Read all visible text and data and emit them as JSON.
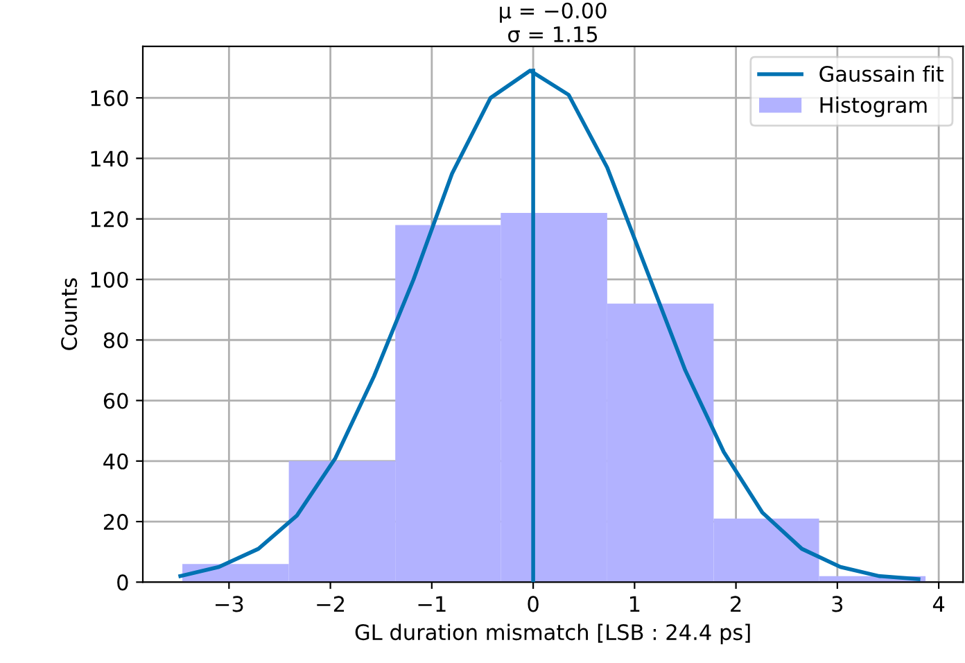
{
  "chart_data": {
    "type": "histogram",
    "title": "μ = −0.00\nσ = 1.15",
    "xlabel": "GL duration mismatch [LSB : 24.4 ps]",
    "ylabel": "Counts",
    "bins": [
      -3.46,
      -2.41,
      -1.36,
      -0.32,
      0.73,
      1.78,
      2.82,
      3.87
    ],
    "series": [
      {
        "name": "Gaussain fit",
        "type": "line",
        "color": "#0072b2",
        "x": [
          -3.48,
          -3.1,
          -2.71,
          -2.33,
          -1.95,
          -1.57,
          -1.18,
          -0.8,
          -0.42,
          -0.03,
          0.35,
          0.73,
          1.12,
          1.5,
          1.88,
          2.26,
          2.65,
          3.03,
          3.41,
          3.8
        ],
        "values": [
          2,
          5,
          11,
          22,
          41,
          68,
          100,
          135,
          160,
          169,
          161,
          137,
          103,
          70,
          43,
          23,
          11,
          5,
          2,
          1
        ]
      },
      {
        "name": "Histogram",
        "color": "#b2b2ff",
        "values": [
          6,
          40,
          118,
          122,
          92,
          21,
          2
        ]
      },
      {
        "type": "line",
        "color": "#0072b2",
        "x": [
          0,
          0
        ],
        "values": [
          0,
          169
        ]
      }
    ],
    "xlim": [
      -3.85,
      4.24
    ],
    "ylim": [
      0,
      177
    ],
    "xticks": [
      -3,
      -2,
      -1,
      0,
      1,
      2,
      3,
      4
    ],
    "yticks": [
      0,
      20,
      40,
      60,
      80,
      100,
      120,
      140,
      160
    ],
    "grid": true,
    "legend": "top right"
  }
}
